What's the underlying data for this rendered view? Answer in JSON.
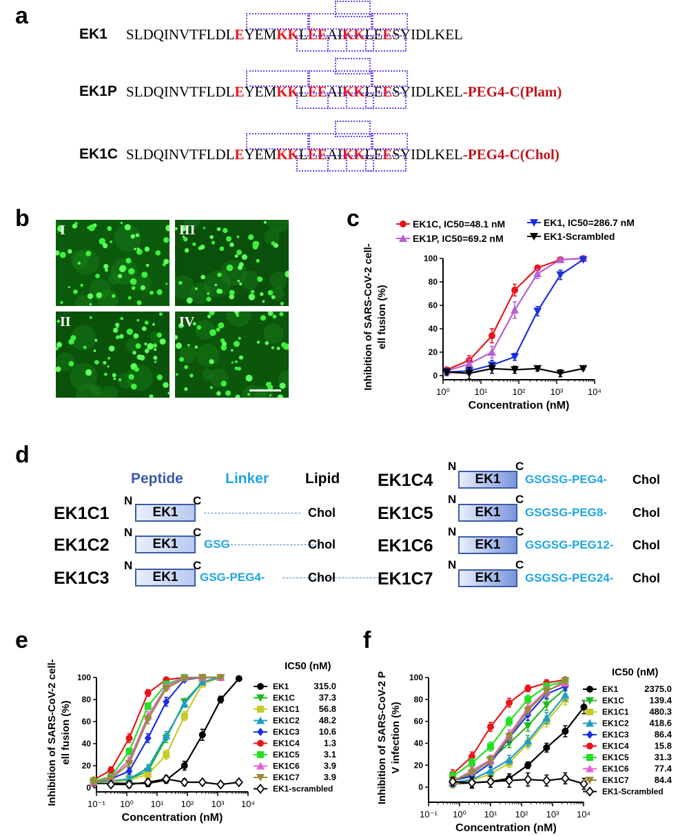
{
  "panels": {
    "a": "a",
    "b": "b",
    "c": "c",
    "d": "d",
    "e": "e",
    "f": "f"
  },
  "sequences": [
    {
      "name": "EK1",
      "prefix": "SLDQINVTFLDL",
      "parts": [
        "E",
        "YEM",
        "KK",
        "L",
        "EE",
        "AI",
        "KK",
        "LE",
        "E",
        "SYIDLKEL"
      ],
      "suffix": ""
    },
    {
      "name": "EK1P",
      "prefix": "SLDQINVTFLDL",
      "parts": [
        "E",
        "YEM",
        "KK",
        "L",
        "EE",
        "AI",
        "KK",
        "LE",
        "E",
        "SYIDLKEL"
      ],
      "suffix": "-PEG4-C(Plam)"
    },
    {
      "name": "EK1C",
      "prefix": "SLDQINVTFLDL",
      "parts": [
        "E",
        "YEM",
        "KK",
        "L",
        "EE",
        "AI",
        "KK",
        "LE",
        "E",
        "SYIDLKEL"
      ],
      "suffix": "-PEG4-C(Chol)"
    }
  ],
  "micrographs": {
    "labels": [
      "I",
      "III",
      "II",
      "IV"
    ]
  },
  "panel_d": {
    "headers": {
      "peptide": "Peptide",
      "linker": "Linker",
      "lipid": "Lipid"
    },
    "n_label": "N",
    "c_label": "C",
    "box_label": "EK1",
    "left": [
      {
        "name": "EK1C1",
        "linker": "",
        "lipid": "Chol"
      },
      {
        "name": "EK1C2",
        "linker": "GSG",
        "lipid": "Chol"
      },
      {
        "name": "EK1C3",
        "linker": "GSG-PEG4-",
        "lipid": "Chol"
      }
    ],
    "right": [
      {
        "name": "EK1C4",
        "linker": "GSGSG-PEG4-",
        "lipid": "Chol"
      },
      {
        "name": "EK1C5",
        "linker": "GSGSG-PEG8-",
        "lipid": "Chol"
      },
      {
        "name": "EK1C6",
        "linker": "GSGSG-PEG12-",
        "lipid": "Chol"
      },
      {
        "name": "EK1C7",
        "linker": "GSGSG-PEG24-",
        "lipid": "Chol"
      }
    ]
  },
  "chart_data": [
    {
      "panel": "c",
      "type": "line",
      "xscale": "log",
      "ylabel": "Inhibition of SARS-CoV-2 cell-cell fusion (%)",
      "xlabel": "Concentration (nM)",
      "xlim": [
        1,
        10000
      ],
      "ylim": [
        0,
        100
      ],
      "xticks": [
        "10⁰",
        "10¹",
        "10²",
        "10³",
        "10⁴"
      ],
      "yticks": [
        "0",
        "20",
        "40",
        "60",
        "80",
        "100"
      ],
      "series": [
        {
          "name": "EK1C, IC50=48.1 nM",
          "color": "#e8151b",
          "marker": "circle",
          "x": [
            1.25,
            4.9,
            19.5,
            78,
            312,
            1250,
            5000
          ],
          "y": [
            5,
            13,
            34,
            73,
            92,
            99,
            100
          ],
          "err": [
            2,
            4,
            6,
            5,
            1,
            1,
            1
          ]
        },
        {
          "name": "EK1P, IC50=69.2 nM",
          "color": "#b85fd6",
          "marker": "tri-up",
          "x": [
            1.25,
            4.9,
            19.5,
            78,
            312,
            1250,
            5000
          ],
          "y": [
            4,
            10,
            20,
            56,
            87,
            99,
            100
          ],
          "err": [
            2,
            4,
            5,
            7,
            4,
            1,
            1
          ]
        },
        {
          "name": "EK1, IC50=286.7 nM",
          "color": "#1c2fe0",
          "marker": "tri-down",
          "x": [
            1.25,
            4.9,
            19.5,
            78,
            312,
            1250,
            5000
          ],
          "y": [
            3,
            4,
            9,
            16,
            55,
            86,
            99
          ],
          "err": [
            3,
            3,
            4,
            3,
            4,
            4,
            1
          ]
        },
        {
          "name": "EK1-Scrambled",
          "color": "#000000",
          "marker": "tri-down",
          "x": [
            1.25,
            4.9,
            19.5,
            78,
            312,
            1250,
            5000
          ],
          "y": [
            3,
            2,
            6,
            5,
            6,
            2,
            6
          ],
          "err": [
            2,
            5,
            4,
            3,
            2,
            3,
            1
          ]
        }
      ]
    },
    {
      "panel": "e",
      "type": "line",
      "xscale": "log",
      "ylabel": "Inhibition of SARS-CoV-2 cell-cell fusion (%)",
      "xlabel": "Concentration (nM)",
      "xlim": [
        0.1,
        10000
      ],
      "ylim": [
        0,
        100
      ],
      "xticks": [
        "10⁻¹",
        "10⁰",
        "10¹",
        "10²",
        "10³",
        "10⁴"
      ],
      "yticks": [
        "0",
        "20",
        "40",
        "60",
        "80",
        "100"
      ],
      "legend_title": "IC50 (nM)",
      "series": [
        {
          "name": "EK1",
          "ic50": "315.0",
          "color": "#000000",
          "marker": "circle",
          "x": [
            0.08,
            0.3,
            1.2,
            5,
            20,
            80,
            312,
            1250,
            5000
          ],
          "y": [
            4,
            4,
            4,
            4,
            7,
            20,
            48,
            80,
            99
          ],
          "err": [
            1,
            1,
            2,
            3,
            3,
            4,
            5,
            3,
            1
          ]
        },
        {
          "name": "EK1C",
          "ic50": "37.3",
          "color": "#22b822",
          "marker": "tri-down",
          "x": [
            0.08,
            0.3,
            1.2,
            5,
            20,
            80,
            312,
            1250
          ],
          "y": [
            5,
            6,
            8,
            15,
            45,
            78,
            96,
            100
          ],
          "err": [
            1,
            1,
            2,
            3,
            4,
            3,
            2,
            1
          ]
        },
        {
          "name": "EK1C1",
          "ic50": "56.8",
          "color": "#c9c928",
          "marker": "square",
          "x": [
            0.08,
            0.3,
            1.2,
            5,
            20,
            80,
            312,
            1250
          ],
          "y": [
            5,
            5,
            7,
            12,
            30,
            65,
            94,
            100
          ],
          "err": [
            1,
            1,
            2,
            3,
            4,
            4,
            2,
            1
          ]
        },
        {
          "name": "EK1C2",
          "ic50": "48.2",
          "color": "#1e9ec6",
          "marker": "tri-up",
          "x": [
            0.08,
            0.3,
            1.2,
            5,
            20,
            80,
            312,
            1250
          ],
          "y": [
            5,
            6,
            8,
            18,
            47,
            76,
            96,
            100
          ],
          "err": [
            1,
            1,
            2,
            3,
            4,
            3,
            2,
            1
          ]
        },
        {
          "name": "EK1C3",
          "ic50": "10.6",
          "color": "#1c2fe0",
          "marker": "diamond",
          "x": [
            0.08,
            0.3,
            1.2,
            5,
            20,
            80,
            312,
            1250
          ],
          "y": [
            6,
            8,
            15,
            45,
            78,
            98,
            100,
            100
          ],
          "err": [
            1,
            2,
            3,
            4,
            4,
            2,
            1,
            1
          ]
        },
        {
          "name": "EK1C4",
          "ic50": "1.3",
          "color": "#e8151b",
          "marker": "circle",
          "x": [
            0.08,
            0.3,
            1.2,
            5,
            20,
            80,
            312,
            1250
          ],
          "y": [
            7,
            16,
            45,
            86,
            98,
            100,
            100,
            100
          ],
          "err": [
            2,
            3,
            4,
            3,
            1,
            1,
            1,
            1
          ]
        },
        {
          "name": "EK1C5",
          "ic50": "3.1",
          "color": "#22e022",
          "marker": "square",
          "x": [
            0.08,
            0.3,
            1.2,
            5,
            20,
            80,
            312,
            1250
          ],
          "y": [
            6,
            10,
            33,
            74,
            94,
            100,
            100,
            100
          ],
          "err": [
            1,
            2,
            3,
            3,
            2,
            1,
            1,
            1
          ]
        },
        {
          "name": "EK1C6",
          "ic50": "3.9",
          "color": "#e860d8",
          "marker": "tri-up",
          "x": [
            0.08,
            0.3,
            1.2,
            5,
            20,
            80,
            312,
            1250
          ],
          "y": [
            5,
            9,
            25,
            65,
            92,
            100,
            100,
            100
          ],
          "err": [
            1,
            2,
            3,
            4,
            2,
            1,
            1,
            1
          ]
        },
        {
          "name": "EK1C7",
          "ic50": "3.9",
          "color": "#9a8a3a",
          "marker": "tri-down",
          "x": [
            0.08,
            0.3,
            1.2,
            5,
            20,
            80,
            312,
            1250
          ],
          "y": [
            5,
            8,
            22,
            62,
            90,
            99,
            100,
            100
          ],
          "err": [
            1,
            2,
            3,
            4,
            2,
            1,
            1,
            1
          ]
        },
        {
          "name": "EK1-scrambled",
          "ic50": "",
          "color": "#000000",
          "marker": "diamond-open",
          "x": [
            0.3,
            1.2,
            5,
            20,
            80,
            312,
            1250,
            5000
          ],
          "y": [
            3,
            3,
            5,
            8,
            5,
            5,
            3,
            5
          ],
          "err": [
            1,
            3,
            3,
            3,
            3,
            2,
            1,
            1
          ]
        }
      ]
    },
    {
      "panel": "f",
      "type": "line",
      "xscale": "log",
      "ylabel": "Inhibition of SARS-CoV-2 PsV infection (%)",
      "xlabel": "Concentration (nM)",
      "xlim": [
        0.1,
        10000
      ],
      "ylim": [
        -10,
        100
      ],
      "xticks": [
        "10⁻¹",
        "10⁰",
        "10¹",
        "10²",
        "10³",
        "10⁴"
      ],
      "yticks": [
        "0",
        "20",
        "40",
        "60",
        "80",
        "100"
      ],
      "legend_title": "IC50 (nM)",
      "series": [
        {
          "name": "EK1",
          "ic50": "2375.0",
          "color": "#000000",
          "marker": "circle",
          "x": [
            0.6,
            2.5,
            10,
            40,
            160,
            640,
            2560,
            10240
          ],
          "y": [
            3,
            4,
            5,
            8,
            20,
            36,
            51,
            73
          ],
          "err": [
            3,
            4,
            5,
            4,
            3,
            4,
            5,
            6
          ]
        },
        {
          "name": "EK1C",
          "ic50": "139.4",
          "color": "#22b822",
          "marker": "tri-down",
          "x": [
            0.6,
            2.5,
            10,
            40,
            160,
            640,
            2560
          ],
          "y": [
            6,
            12,
            25,
            40,
            56,
            75,
            90
          ],
          "err": [
            4,
            4,
            4,
            4,
            5,
            5,
            5
          ]
        },
        {
          "name": "EK1C1",
          "ic50": "480.3",
          "color": "#c9c928",
          "marker": "square",
          "x": [
            0.6,
            2.5,
            10,
            40,
            160,
            640,
            2560
          ],
          "y": [
            3,
            6,
            12,
            22,
            40,
            60,
            80
          ],
          "err": [
            4,
            4,
            4,
            4,
            5,
            5,
            5
          ]
        },
        {
          "name": "EK1C2",
          "ic50": "418.6",
          "color": "#1e9ec6",
          "marker": "tri-up",
          "x": [
            0.6,
            2.5,
            10,
            40,
            160,
            640,
            2560
          ],
          "y": [
            4,
            7,
            15,
            25,
            42,
            63,
            84
          ],
          "err": [
            4,
            4,
            4,
            4,
            5,
            5,
            5
          ]
        },
        {
          "name": "EK1C3",
          "ic50": "86.4",
          "color": "#1c2fe0",
          "marker": "diamond",
          "x": [
            0.6,
            2.5,
            10,
            40,
            160,
            640,
            2560
          ],
          "y": [
            6,
            10,
            22,
            45,
            66,
            85,
            92
          ],
          "err": [
            4,
            4,
            4,
            4,
            5,
            4,
            4
          ]
        },
        {
          "name": "EK1C4",
          "ic50": "15.8",
          "color": "#e8151b",
          "marker": "circle",
          "x": [
            0.6,
            2.5,
            10,
            40,
            160,
            640,
            2560
          ],
          "y": [
            12,
            28,
            55,
            77,
            90,
            95,
            98
          ],
          "err": [
            4,
            4,
            4,
            4,
            3,
            3,
            2
          ]
        },
        {
          "name": "EK1C5",
          "ic50": "31.3",
          "color": "#22e022",
          "marker": "square",
          "x": [
            0.6,
            2.5,
            10,
            40,
            160,
            640,
            2560
          ],
          "y": [
            10,
            22,
            37,
            60,
            80,
            92,
            97
          ],
          "err": [
            4,
            4,
            4,
            4,
            4,
            3,
            3
          ]
        },
        {
          "name": "EK1C6",
          "ic50": "77.4",
          "color": "#e860d8",
          "marker": "tri-up",
          "x": [
            0.6,
            2.5,
            10,
            40,
            160,
            640,
            2560
          ],
          "y": [
            5,
            15,
            25,
            48,
            72,
            88,
            95
          ],
          "err": [
            4,
            4,
            4,
            4,
            4,
            4,
            3
          ]
        },
        {
          "name": "EK1C7",
          "ic50": "84.4",
          "color": "#9a8a3a",
          "marker": "tri-down",
          "x": [
            0.6,
            2.5,
            10,
            40,
            160,
            640,
            2560
          ],
          "y": [
            6,
            13,
            24,
            46,
            70,
            87,
            97
          ],
          "err": [
            4,
            4,
            4,
            4,
            4,
            4,
            3
          ]
        },
        {
          "name": "EK1-Scrambled",
          "ic50": "",
          "color": "#000000",
          "marker": "diamond-open",
          "x": [
            0.6,
            2.5,
            10,
            40,
            160,
            640,
            2560,
            10240
          ],
          "y": [
            5,
            4,
            5,
            6,
            7,
            6,
            8,
            3
          ],
          "err": [
            4,
            5,
            5,
            6,
            6,
            5,
            5,
            5
          ]
        }
      ]
    }
  ]
}
